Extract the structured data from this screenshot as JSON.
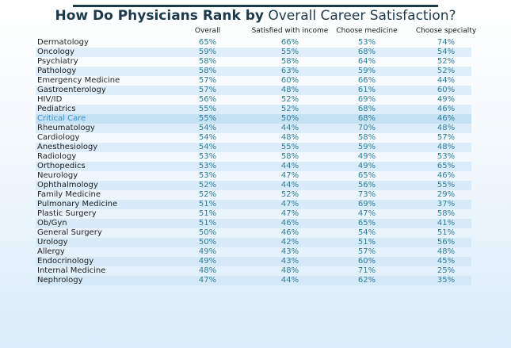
{
  "header": {
    "title_bold": "How Do Physicians Rank by",
    "title_normal": "Overall Career Satisfaction?"
  },
  "table": {
    "columns": [
      "Overall",
      "Satisfied with income",
      "Choose medicine",
      "Choose specialty"
    ],
    "rows": [
      [
        "Dermatology",
        "65%",
        "66%",
        "53%",
        "74%"
      ],
      [
        "Oncology",
        "59%",
        "55%",
        "68%",
        "54%"
      ],
      [
        "Psychiatry",
        "58%",
        "58%",
        "64%",
        "52%"
      ],
      [
        "Pathology",
        "58%",
        "63%",
        "59%",
        "52%"
      ],
      [
        "Emergency Medicine",
        "57%",
        "60%",
        "66%",
        "44%"
      ],
      [
        "Gastroenterology",
        "57%",
        "48%",
        "61%",
        "60%"
      ],
      [
        "HIV/ID",
        "56%",
        "52%",
        "69%",
        "49%"
      ],
      [
        "Pediatrics",
        "55%",
        "52%",
        "68%",
        "46%"
      ],
      [
        "Critical Care",
        "55%",
        "50%",
        "68%",
        "46%"
      ],
      [
        "Rheumatology",
        "54%",
        "44%",
        "70%",
        "48%"
      ],
      [
        "Cardiology",
        "54%",
        "48%",
        "58%",
        "57%"
      ],
      [
        "Anesthesiology",
        "54%",
        "55%",
        "59%",
        "48%"
      ],
      [
        "Radiology",
        "53%",
        "58%",
        "49%",
        "53%"
      ],
      [
        "Orthopedics",
        "53%",
        "44%",
        "49%",
        "65%"
      ],
      [
        "Neurology",
        "53%",
        "47%",
        "65%",
        "46%"
      ],
      [
        "Ophthalmology",
        "52%",
        "44%",
        "56%",
        "55%"
      ],
      [
        "Family Medicine",
        "52%",
        "52%",
        "73%",
        "29%"
      ],
      [
        "Pulmonary Medicine",
        "51%",
        "47%",
        "69%",
        "37%"
      ],
      [
        "Plastic Surgery",
        "51%",
        "47%",
        "47%",
        "58%"
      ],
      [
        "Ob/Gyn",
        "51%",
        "46%",
        "65%",
        "41%"
      ],
      [
        "General Surgery",
        "50%",
        "46%",
        "54%",
        "51%"
      ],
      [
        "Urology",
        "50%",
        "42%",
        "51%",
        "56%"
      ],
      [
        "Allergy",
        "49%",
        "43%",
        "57%",
        "48%"
      ],
      [
        "Endocrinology",
        "49%",
        "43%",
        "60%",
        "45%"
      ],
      [
        "Internal Medicine",
        "48%",
        "48%",
        "71%",
        "25%"
      ],
      [
        "Nephrology",
        "47%",
        "44%",
        "62%",
        "35%"
      ]
    ]
  }
}
